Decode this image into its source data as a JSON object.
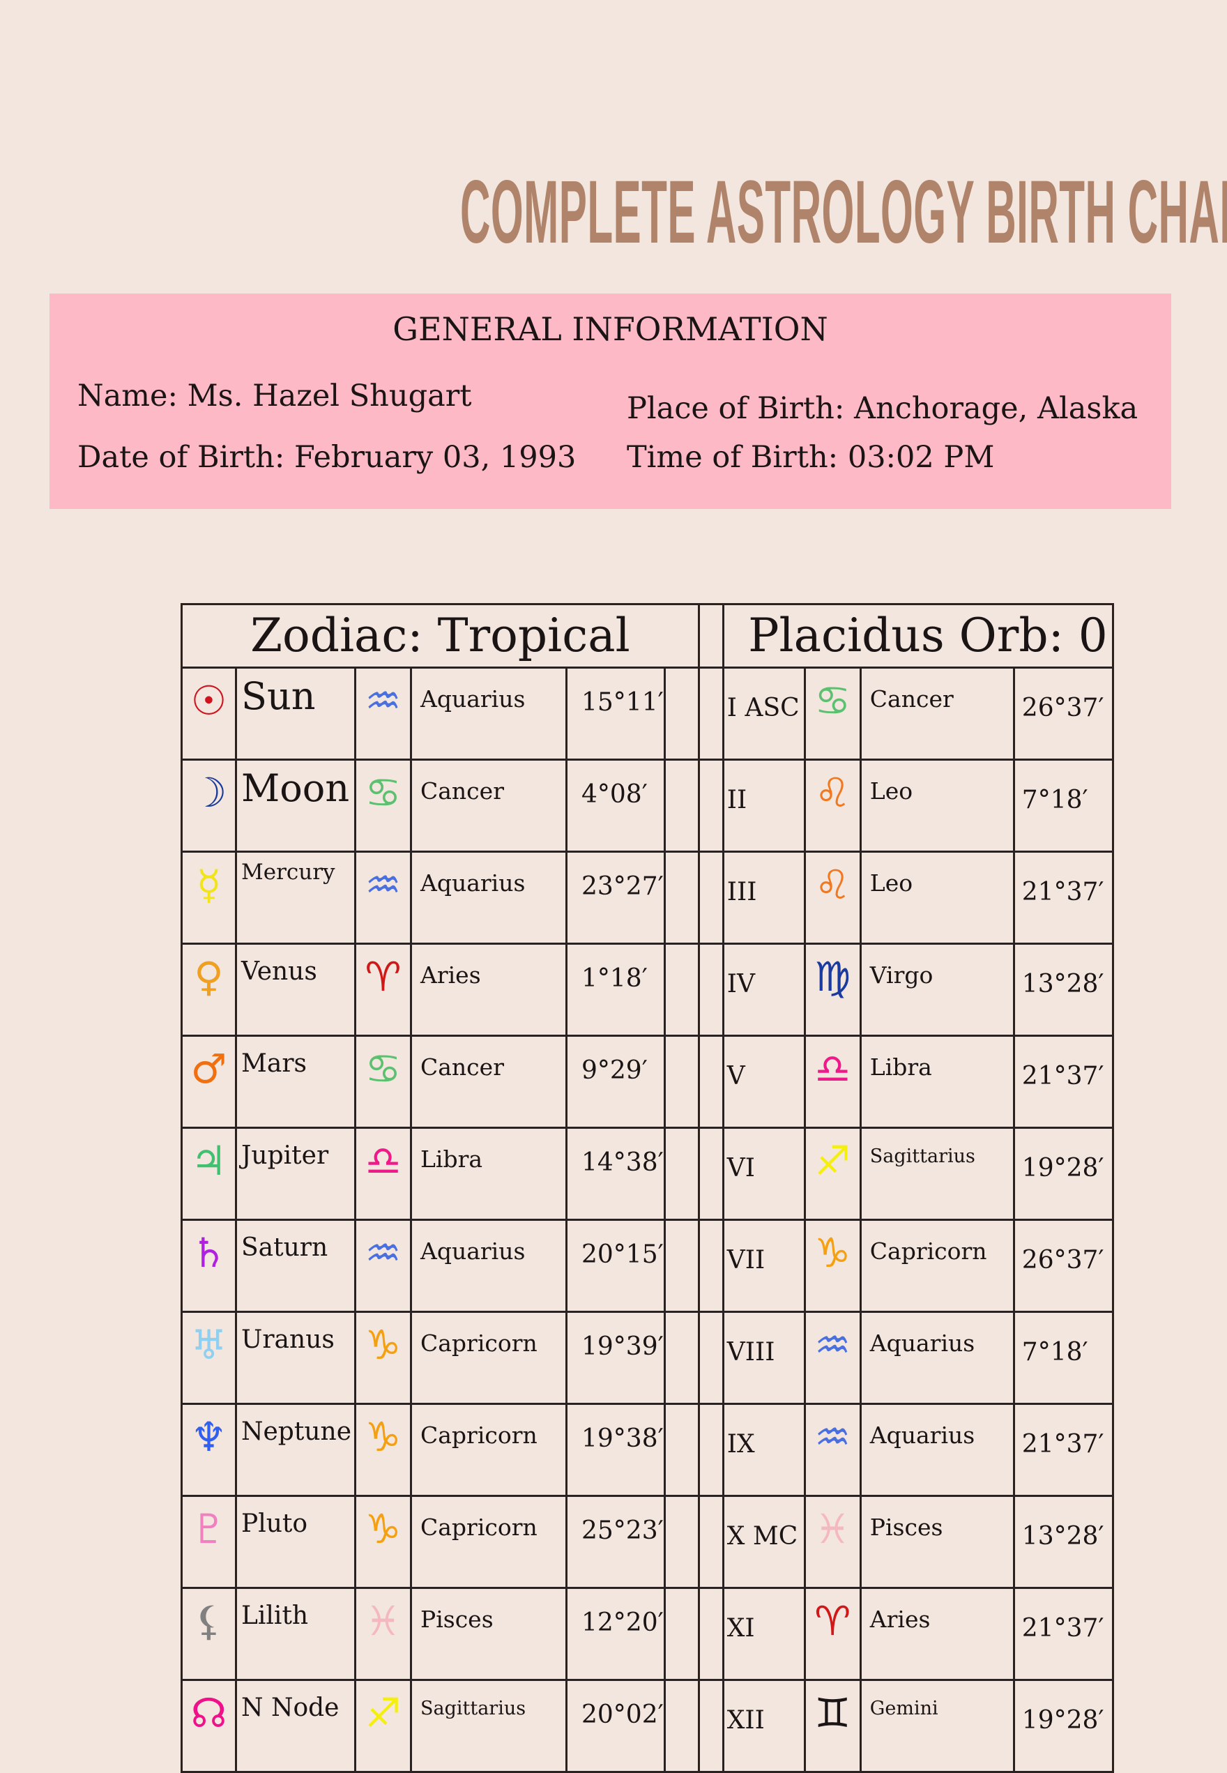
{
  "title": "COMPLETE ASTROLOGY BIRTH CHART",
  "general_information": {
    "heading": "GENERAL INFORMATION",
    "name": "Name: Ms. Hazel Shugart",
    "date_of_birth": "Date of Birth: February 03, 1993",
    "place_of_birth": "Place of Birth: Anchorage, Alaska",
    "time_of_birth": "Time of Birth: 03:02 PM"
  },
  "colors": {
    "background": "#f3e6de",
    "title": "#b0846a",
    "info_box": "#fdb9c6"
  },
  "chart": {
    "left_header": "Zodiac: Tropical",
    "right_header": "Placidus Orb: 0",
    "planets": [
      {
        "icon": "sun-icon",
        "glyph": "☉",
        "color": "#d0141e",
        "name": "Sun",
        "sign_icon": "aquarius-icon",
        "sign_glyph": "♒",
        "sign_color": "#4a70e0",
        "sign": "Aquarius",
        "degree": "15°11′"
      },
      {
        "icon": "moon-icon",
        "glyph": "☽",
        "color": "#1a3a9c",
        "name": "Moon",
        "sign_icon": "cancer-icon",
        "sign_glyph": "♋",
        "sign_color": "#5cc070",
        "sign": "Cancer",
        "degree": "4°08′"
      },
      {
        "icon": "mercury-icon",
        "glyph": "☿",
        "color": "#f2e41a",
        "name": "Mercury",
        "sign_icon": "aquarius-icon",
        "sign_glyph": "♒",
        "sign_color": "#4a70e0",
        "sign": "Aquarius",
        "degree": "23°27′"
      },
      {
        "icon": "venus-icon",
        "glyph": "♀",
        "color": "#f0a020",
        "name": "Venus",
        "sign_icon": "aries-icon",
        "sign_glyph": "♈",
        "sign_color": "#d01818",
        "sign": "Aries",
        "degree": "1°18′"
      },
      {
        "icon": "mars-icon",
        "glyph": "♂",
        "color": "#f07010",
        "name": "Mars",
        "sign_icon": "cancer-icon",
        "sign_glyph": "♋",
        "sign_color": "#5cc070",
        "sign": "Cancer",
        "degree": "9°29′"
      },
      {
        "icon": "jupiter-icon",
        "glyph": "♃",
        "color": "#40c070",
        "name": "Jupiter",
        "sign_icon": "libra-icon",
        "sign_glyph": "♎",
        "sign_color": "#ee1a8a",
        "sign": "Libra",
        "degree": "14°38′"
      },
      {
        "icon": "saturn-icon",
        "glyph": "♄",
        "color": "#b020e0",
        "name": "Saturn",
        "sign_icon": "aquarius-icon",
        "sign_glyph": "♒",
        "sign_color": "#4a70e0",
        "sign": "Aquarius",
        "degree": "20°15′"
      },
      {
        "icon": "uranus-icon",
        "glyph": "♅",
        "color": "#8fd0f0",
        "name": "Uranus",
        "sign_icon": "capricorn-icon",
        "sign_glyph": "♑",
        "sign_color": "#f5a010",
        "sign": "Capricorn",
        "degree": "19°39′"
      },
      {
        "icon": "neptune-icon",
        "glyph": "♆",
        "color": "#3060f0",
        "name": "Neptune",
        "sign_icon": "capricorn-icon",
        "sign_glyph": "♑",
        "sign_color": "#f5a010",
        "sign": "Capricorn",
        "degree": "19°38′"
      },
      {
        "icon": "pluto-icon",
        "glyph": "♇",
        "color": "#f080c0",
        "name": "Pluto",
        "sign_icon": "capricorn-icon",
        "sign_glyph": "♑",
        "sign_color": "#f5a010",
        "sign": "Capricorn",
        "degree": "25°23′"
      },
      {
        "icon": "lilith-icon",
        "glyph": "⚸",
        "color": "#808080",
        "name": "Lilith",
        "sign_icon": "pisces-icon",
        "sign_glyph": "♓",
        "sign_color": "#f4b8c0",
        "sign": "Pisces",
        "degree": "12°20′"
      },
      {
        "icon": "north-node-icon",
        "glyph": "☊",
        "color": "#f0108a",
        "name": "N Node",
        "sign_icon": "sagittarius-icon",
        "sign_glyph": "♐",
        "sign_color": "#f5ef10",
        "sign": "Sagittarius",
        "degree": "20°02′"
      }
    ],
    "houses": [
      {
        "house": "I ASC",
        "sign_icon": "cancer-icon",
        "sign_glyph": "♋",
        "sign_color": "#5cc070",
        "sign": "Cancer",
        "degree": "26°37′"
      },
      {
        "house": "II",
        "sign_icon": "leo-icon",
        "sign_glyph": "♌",
        "sign_color": "#f07820",
        "sign": "Leo",
        "degree": "7°18′"
      },
      {
        "house": "III",
        "sign_icon": "leo-icon",
        "sign_glyph": "♌",
        "sign_color": "#f07820",
        "sign": "Leo",
        "degree": "21°37′"
      },
      {
        "house": "IV",
        "sign_icon": "virgo-icon",
        "sign_glyph": "♍",
        "sign_color": "#1a3aa0",
        "sign": "Virgo",
        "degree": "13°28′"
      },
      {
        "house": "V",
        "sign_icon": "libra-icon",
        "sign_glyph": "♎",
        "sign_color": "#ee1a8a",
        "sign": "Libra",
        "degree": "21°37′"
      },
      {
        "house": "VI",
        "sign_icon": "sagittarius-icon",
        "sign_glyph": "♐",
        "sign_color": "#f5ef10",
        "sign": "Sagittarius",
        "degree": "19°28′"
      },
      {
        "house": "VII",
        "sign_icon": "capricorn-icon",
        "sign_glyph": "♑",
        "sign_color": "#f5a010",
        "sign": "Capricorn",
        "degree": "26°37′"
      },
      {
        "house": "VIII",
        "sign_icon": "aquarius-icon",
        "sign_glyph": "♒",
        "sign_color": "#4a70e0",
        "sign": "Aquarius",
        "degree": "7°18′"
      },
      {
        "house": "IX",
        "sign_icon": "aquarius-icon",
        "sign_glyph": "♒",
        "sign_color": "#4a70e0",
        "sign": "Aquarius",
        "degree": "21°37′"
      },
      {
        "house": "X MC",
        "sign_icon": "pisces-icon",
        "sign_glyph": "♓",
        "sign_color": "#f4b8c0",
        "sign": "Pisces",
        "degree": "13°28′"
      },
      {
        "house": "XI",
        "sign_icon": "aries-icon",
        "sign_glyph": "♈",
        "sign_color": "#d01818",
        "sign": "Aries",
        "degree": "21°37′"
      },
      {
        "house": "XII",
        "sign_icon": "gemini-icon",
        "sign_glyph": "♊",
        "sign_color": "#1a1414",
        "sign": "Gemini",
        "degree": "19°28′"
      }
    ]
  }
}
